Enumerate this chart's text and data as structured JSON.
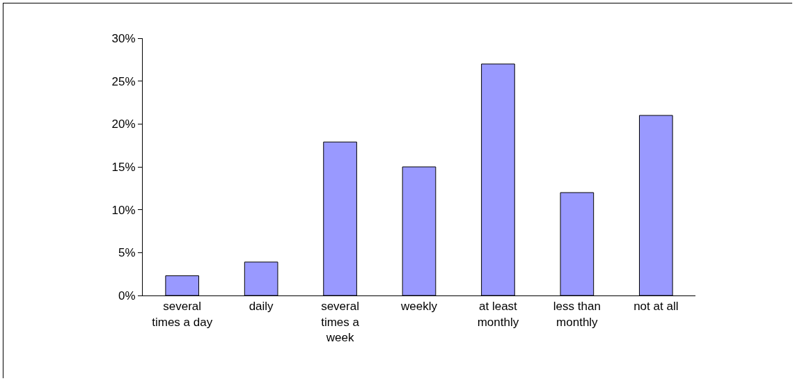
{
  "chart_data": {
    "type": "bar",
    "categories": [
      "several times a day",
      "daily",
      "several times a week",
      "weekly",
      "at least monthly",
      "less than monthly",
      "not at all"
    ],
    "values": [
      2.3,
      3.9,
      17.9,
      15,
      27,
      12,
      21
    ],
    "color": "#9999ff",
    "ylim": [
      0,
      30
    ],
    "yticks": [
      {
        "value": 0,
        "label": "0%"
      },
      {
        "value": 5,
        "label": "5%"
      },
      {
        "value": 10,
        "label": "10%"
      },
      {
        "value": 15,
        "label": "15%"
      },
      {
        "value": 20,
        "label": "20%"
      },
      {
        "value": 25,
        "label": "25%"
      },
      {
        "value": 30,
        "label": "30%"
      }
    ],
    "grid": false
  }
}
